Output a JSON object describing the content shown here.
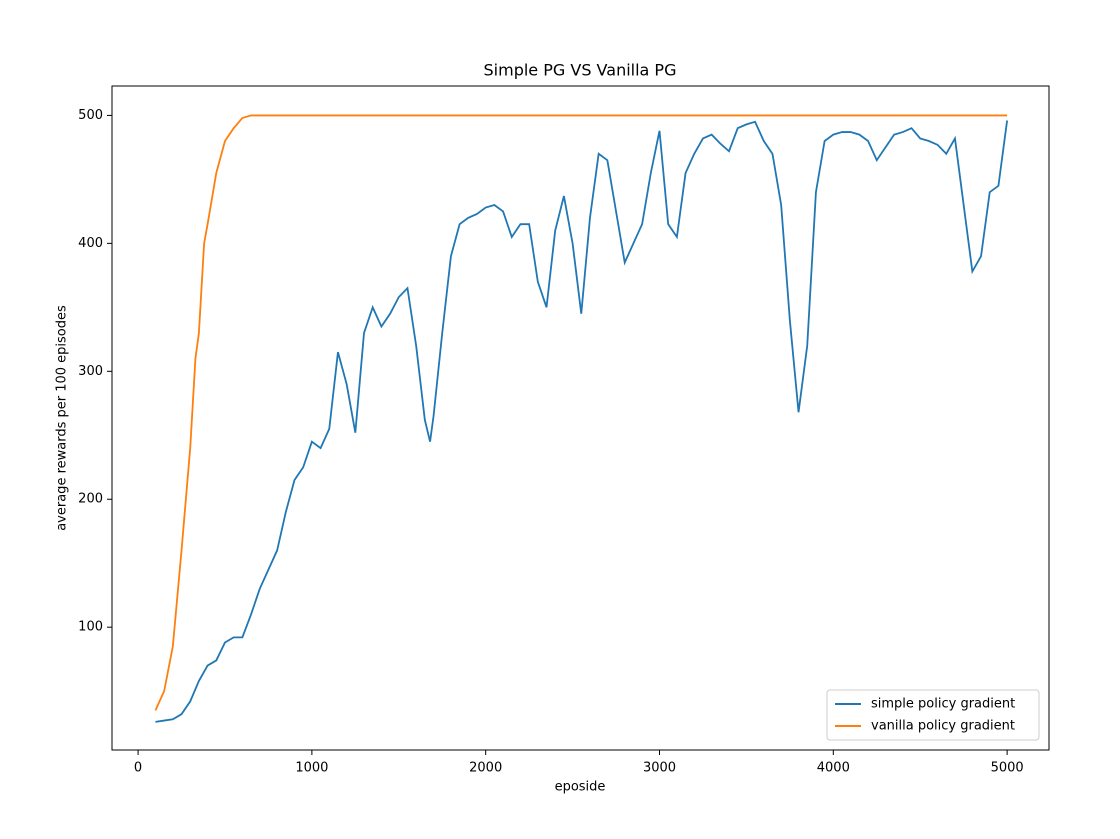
{
  "chart_data": {
    "type": "line",
    "title": "Simple PG VS Vanilla PG",
    "x_label": "eposide",
    "y_label": "average rewards per 100 episodes",
    "xlim": [
      -150,
      5241
    ],
    "ylim": [
      4,
      523
    ],
    "xticks": [
      0,
      1000,
      2000,
      3000,
      4000,
      5000
    ],
    "yticks": [
      100,
      200,
      300,
      400,
      500
    ],
    "legend": "lower right",
    "series": [
      {
        "name": "simple policy gradient",
        "color": "#1f77b4",
        "x": [
          100,
          150,
          200,
          250,
          300,
          350,
          400,
          450,
          500,
          550,
          600,
          650,
          700,
          750,
          800,
          850,
          900,
          950,
          1000,
          1050,
          1100,
          1150,
          1200,
          1250,
          1300,
          1350,
          1400,
          1450,
          1500,
          1550,
          1600,
          1650,
          1680,
          1700,
          1750,
          1800,
          1850,
          1900,
          1950,
          2000,
          2050,
          2100,
          2150,
          2200,
          2250,
          2300,
          2350,
          2400,
          2450,
          2500,
          2550,
          2600,
          2650,
          2700,
          2750,
          2800,
          2850,
          2900,
          2950,
          3000,
          3050,
          3100,
          3150,
          3200,
          3250,
          3300,
          3350,
          3400,
          3450,
          3500,
          3550,
          3600,
          3650,
          3700,
          3750,
          3800,
          3850,
          3900,
          3950,
          4000,
          4050,
          4100,
          4150,
          4200,
          4250,
          4300,
          4350,
          4400,
          4450,
          4500,
          4550,
          4600,
          4650,
          4700,
          4750,
          4800,
          4850,
          4900,
          4950,
          5000
        ],
        "values": [
          26,
          27,
          28,
          32,
          42,
          58,
          70,
          74,
          88,
          92,
          92,
          110,
          130,
          145,
          160,
          190,
          215,
          225,
          245,
          240,
          255,
          315,
          290,
          252,
          330,
          350,
          335,
          345,
          358,
          365,
          320,
          262,
          245,
          265,
          330,
          390,
          415,
          420,
          423,
          428,
          430,
          425,
          405,
          415,
          415,
          370,
          350,
          410,
          437,
          400,
          345,
          420,
          470,
          465,
          425,
          385,
          400,
          415,
          455,
          488,
          415,
          405,
          455,
          470,
          482,
          485,
          478,
          472,
          490,
          493,
          495,
          480,
          470,
          430,
          340,
          268,
          320,
          440,
          480,
          485,
          487,
          487,
          485,
          480,
          465,
          475,
          485,
          487,
          490,
          482,
          480,
          477,
          470,
          482,
          430,
          378,
          390,
          440,
          445,
          496
        ]
      },
      {
        "name": "vanilla policy gradient",
        "color": "#ff7f0e",
        "x": [
          100,
          150,
          200,
          250,
          300,
          330,
          350,
          380,
          400,
          450,
          500,
          550,
          600,
          650,
          1000,
          2000,
          3000,
          4000,
          5000
        ],
        "values": [
          35,
          50,
          85,
          160,
          240,
          310,
          330,
          400,
          415,
          455,
          480,
          490,
          498,
          500,
          500,
          500,
          500,
          500,
          500
        ]
      }
    ]
  }
}
